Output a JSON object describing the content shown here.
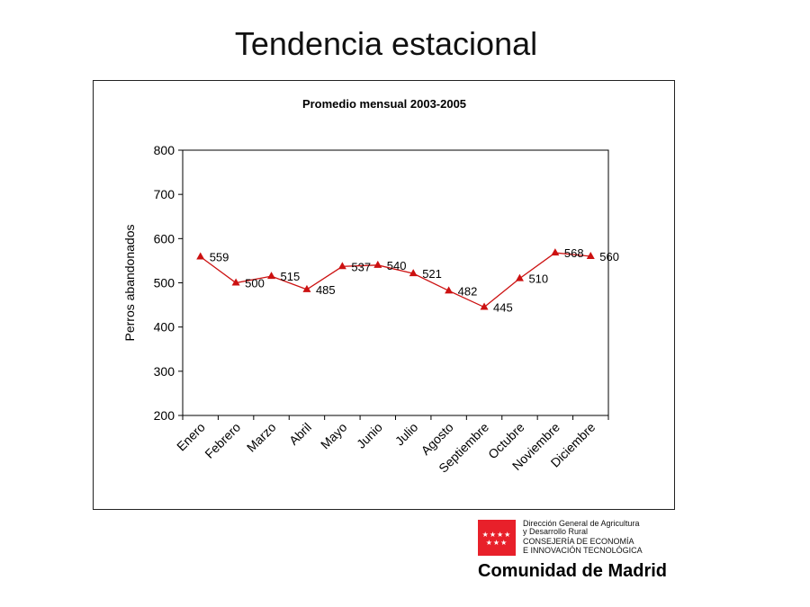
{
  "page_title": "Tendencia estacional",
  "chart_data": {
    "type": "line",
    "title": "Promedio mensual 2003-2005",
    "xlabel": "",
    "ylabel": "Perros abandonados",
    "categories": [
      "Enero",
      "Febrero",
      "Marzo",
      "Abril",
      "Mayo",
      "Junio",
      "Julio",
      "Agosto",
      "Septiembre",
      "Octubre",
      "Noviembre",
      "Diciembre"
    ],
    "values": [
      559,
      500,
      515,
      485,
      537,
      540,
      521,
      482,
      445,
      510,
      568,
      560
    ],
    "ylim": [
      200,
      800
    ],
    "yticks": [
      200,
      300,
      400,
      500,
      600,
      700,
      800
    ],
    "grid": false,
    "marker": "triangle",
    "color": "#cc1111"
  },
  "logo": {
    "line1": "Dirección General de Agricultura",
    "line2": "y Desarrollo Rural",
    "line3": "CONSEJERÍA DE ECONOMÍA",
    "line4": "E INNOVACIÓN TECNOLÓGICA",
    "name": "Comunidad de Madrid",
    "flag_color": "#e8202a"
  }
}
